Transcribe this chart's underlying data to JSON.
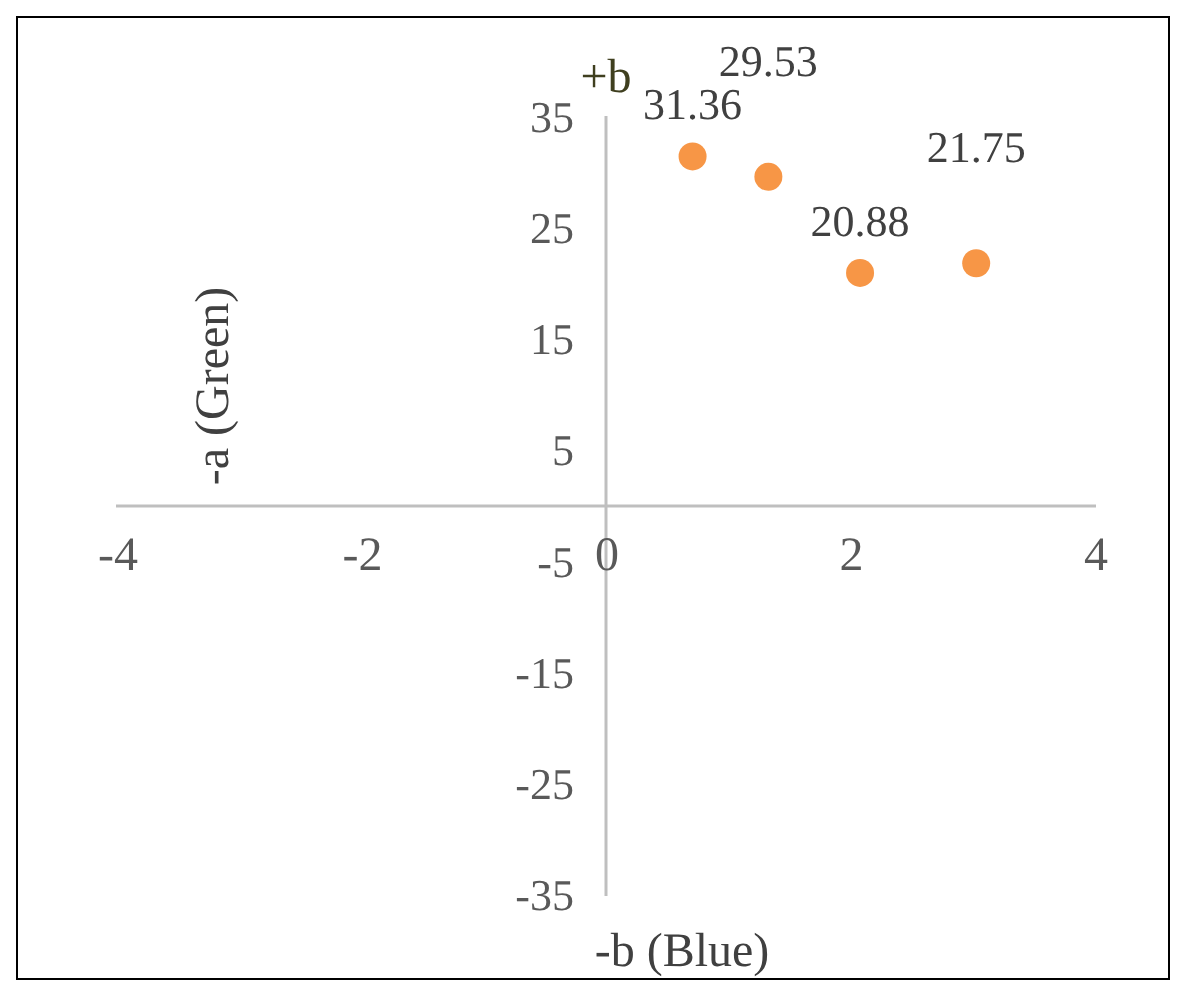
{
  "chart_data": {
    "type": "scatter",
    "xlabel": "-b (Blue)",
    "ylabel": "-a (Green)",
    "annotations": [
      "+b"
    ],
    "x": [
      0.7,
      1.32,
      2.07,
      3.02
    ],
    "series": [
      {
        "color": "#f79646",
        "values": [
          31.36,
          29.53,
          20.88,
          21.75
        ]
      }
    ],
    "xlim": [
      -4,
      4
    ],
    "xticks": [
      -4,
      -2,
      0,
      2,
      4
    ],
    "ylim": [
      -35,
      35
    ],
    "yticks": [
      -35,
      -25,
      -15,
      -5,
      5,
      15,
      25,
      35
    ],
    "data_labels": true,
    "marker": "circle",
    "grid": false,
    "legend": false
  }
}
